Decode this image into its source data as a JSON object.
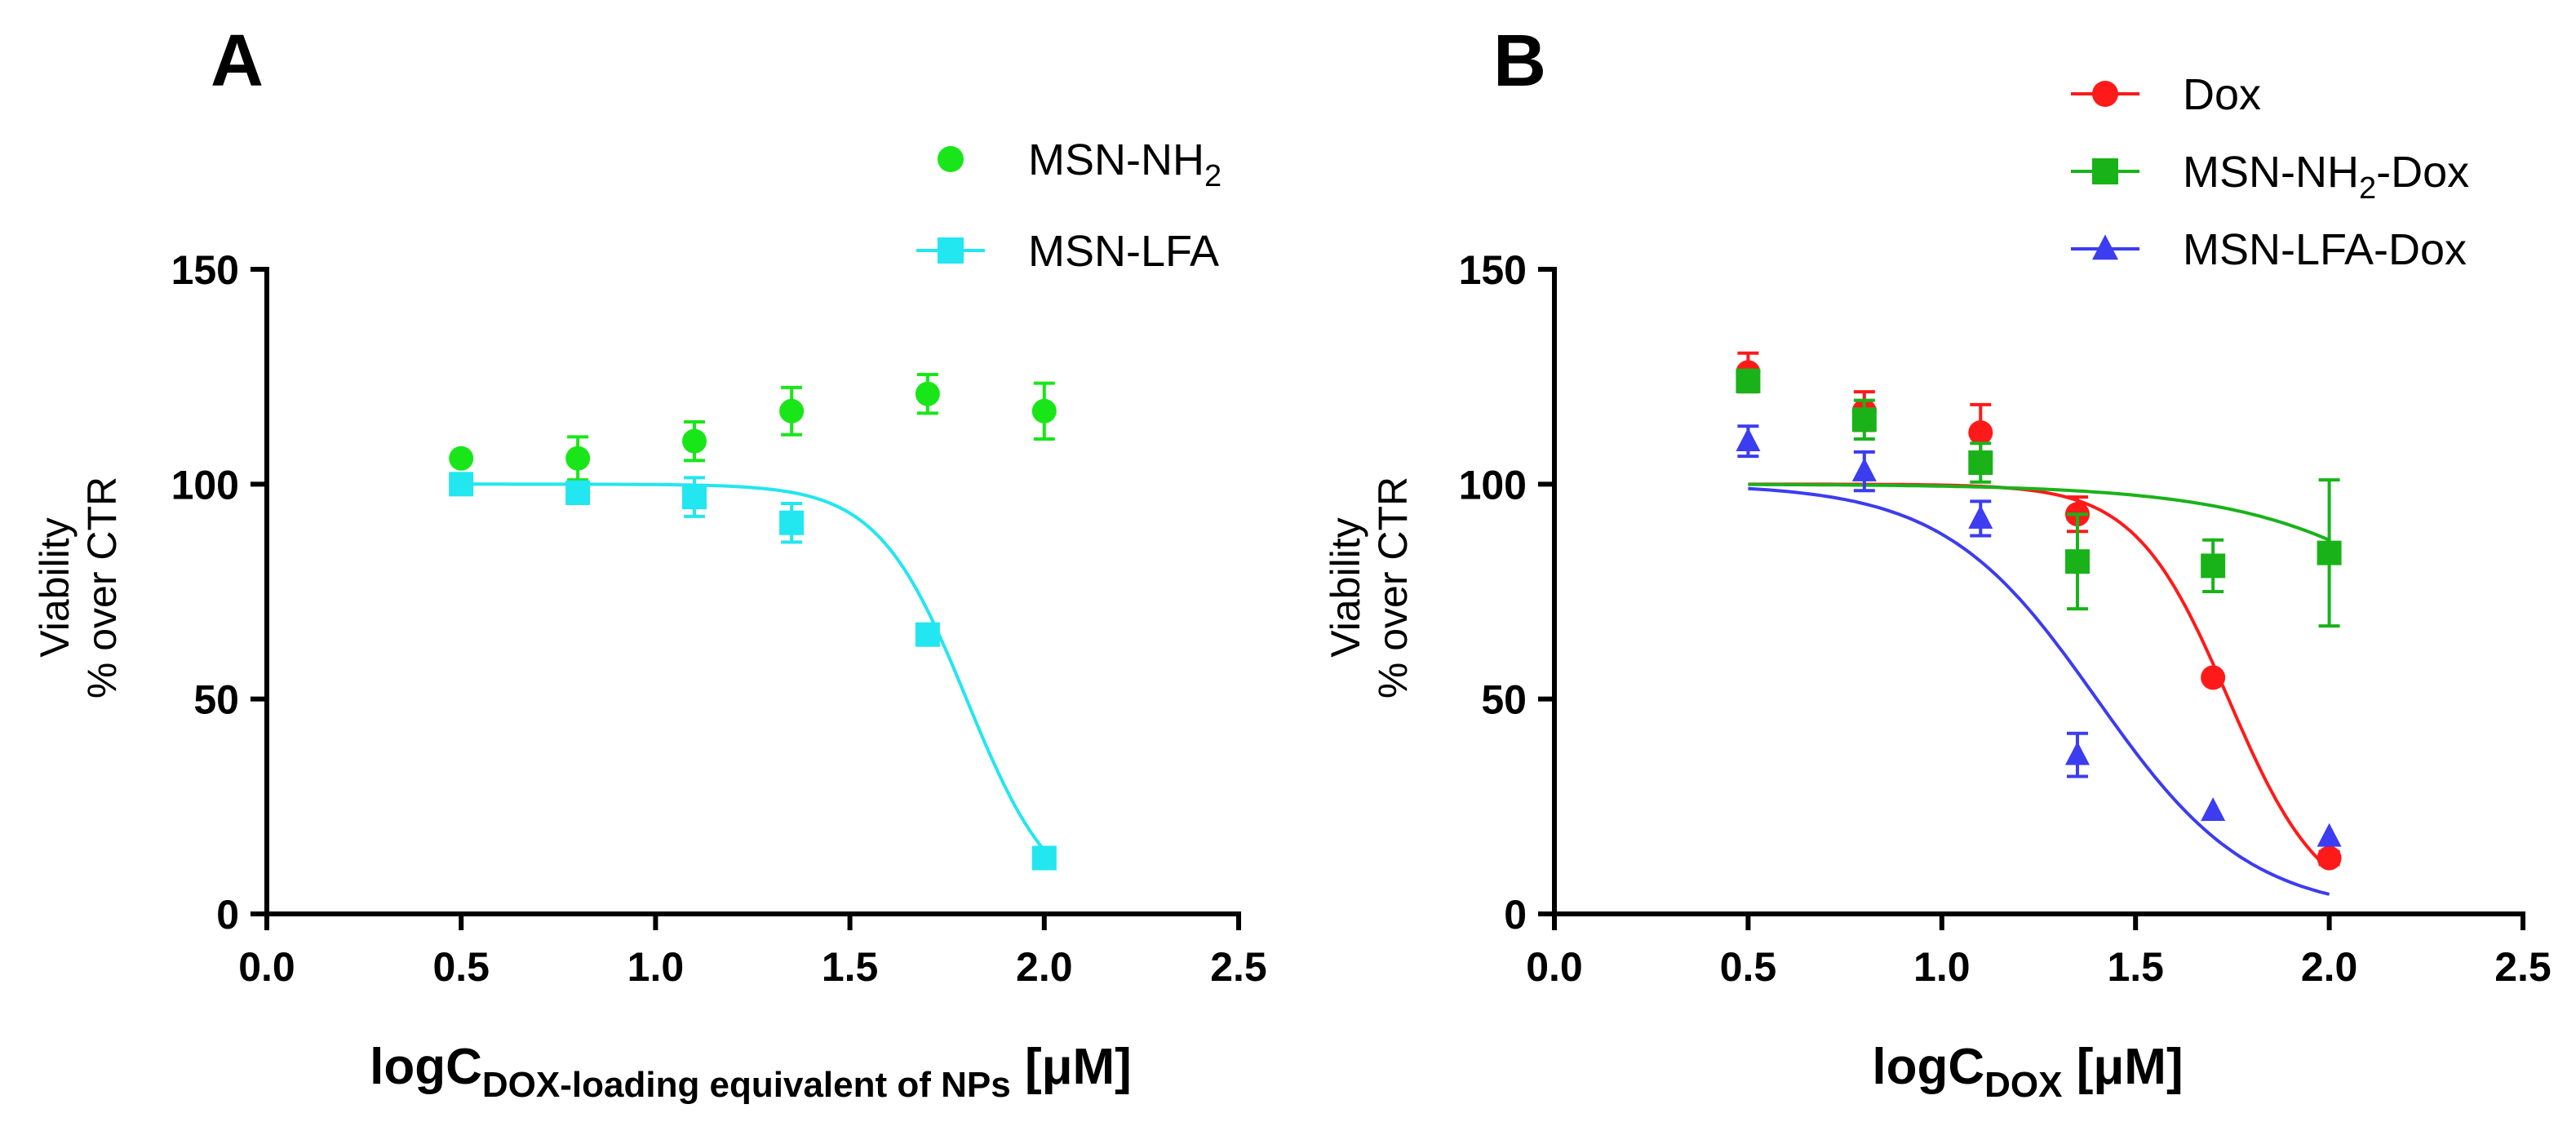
{
  "chart_data": [
    {
      "panel_label": "A",
      "type": "scatter",
      "ylabel": [
        "Viability",
        "% over CTR"
      ],
      "xlabel": {
        "main": "logC",
        "sub": "DOX-loading equivalent of NPs",
        "tail": " [μM]"
      },
      "xlim": [
        0,
        2.5
      ],
      "ylim": [
        0,
        150
      ],
      "xticks": [
        "0.0",
        "0.5",
        "1.0",
        "1.5",
        "2.0",
        "2.5"
      ],
      "yticks": [
        "0",
        "50",
        "100",
        "150"
      ],
      "legend_position": "top-right",
      "series": [
        {
          "name": "MSN-NH2",
          "name_main": "MSN-NH",
          "name_sub": "2",
          "name_tail": "",
          "color": "#19e619",
          "marker": "circle",
          "show_line_in_legend": false,
          "x": [
            0.5,
            0.8,
            1.1,
            1.35,
            1.7,
            2.0
          ],
          "y": [
            106,
            106,
            110,
            117,
            121,
            117
          ],
          "err": [
            0,
            5,
            4.5,
            5.5,
            4.5,
            6.5
          ]
        },
        {
          "name": "MSN-LFA",
          "name_main": "MSN-LFA",
          "name_sub": "",
          "name_tail": "",
          "color": "#22e6f0",
          "marker": "square",
          "show_line_in_legend": true,
          "x": [
            0.5,
            0.8,
            1.1,
            1.35,
            1.7,
            2.0
          ],
          "y": [
            100,
            98,
            97,
            91,
            65,
            13
          ],
          "err": [
            0,
            2.5,
            4.5,
            4.5,
            2,
            1.5
          ],
          "fit": {
            "top": 100,
            "bottom": 0,
            "logec50": 1.8,
            "hill": 3.8
          }
        }
      ]
    },
    {
      "panel_label": "B",
      "type": "scatter",
      "ylabel": [
        "Viability",
        "% over CTR"
      ],
      "xlabel": {
        "main": "logC",
        "sub": "DOX",
        "tail": " [μM]"
      },
      "xlim": [
        0,
        2.5
      ],
      "ylim": [
        0,
        150
      ],
      "xticks": [
        "0.0",
        "0.5",
        "1.0",
        "1.5",
        "2.0",
        "2.5"
      ],
      "yticks": [
        "0",
        "50",
        "100",
        "150"
      ],
      "legend_position": "top-right",
      "series": [
        {
          "name": "Dox",
          "name_main": "Dox",
          "name_sub": "",
          "name_tail": "",
          "color": "#ff1a1a",
          "marker": "circle",
          "show_line_in_legend": true,
          "x": [
            0.5,
            0.8,
            1.1,
            1.35,
            1.7,
            2.0
          ],
          "y": [
            126,
            117,
            112,
            93,
            55,
            13
          ],
          "err": [
            4.5,
            4.5,
            6.5,
            4,
            0,
            1.5
          ],
          "fit": {
            "top": 100,
            "bottom": 0,
            "logec50": 1.74,
            "hill": 3.6
          }
        },
        {
          "name": "MSN-NH2-Dox",
          "name_main": "MSN-NH",
          "name_sub": "2",
          "name_tail": "-Dox",
          "color": "#19b319",
          "marker": "square",
          "show_line_in_legend": true,
          "x": [
            0.5,
            0.8,
            1.1,
            1.35,
            1.7,
            2.0
          ],
          "y": [
            124,
            115,
            105,
            82,
            81,
            84
          ],
          "err": [
            2.5,
            4.5,
            4.5,
            11,
            6,
            17
          ],
          "fit": {
            "top": 100,
            "bottom": 0,
            "logec50": 2.55,
            "hill": 1.5
          }
        },
        {
          "name": "MSN-LFA-Dox",
          "name_main": "MSN-LFA-Dox",
          "name_sub": "",
          "name_tail": "",
          "color": "#3c3cf0",
          "marker": "triangle",
          "show_line_in_legend": true,
          "x": [
            0.5,
            0.8,
            1.1,
            1.35,
            1.7,
            2.0
          ],
          "y": [
            110,
            103,
            92,
            37,
            24,
            18
          ],
          "err": [
            3.5,
            4.5,
            4,
            5,
            0,
            0
          ],
          "fit": {
            "top": 100,
            "bottom": 0,
            "logec50": 1.4,
            "hill": 2.2
          }
        }
      ]
    }
  ]
}
